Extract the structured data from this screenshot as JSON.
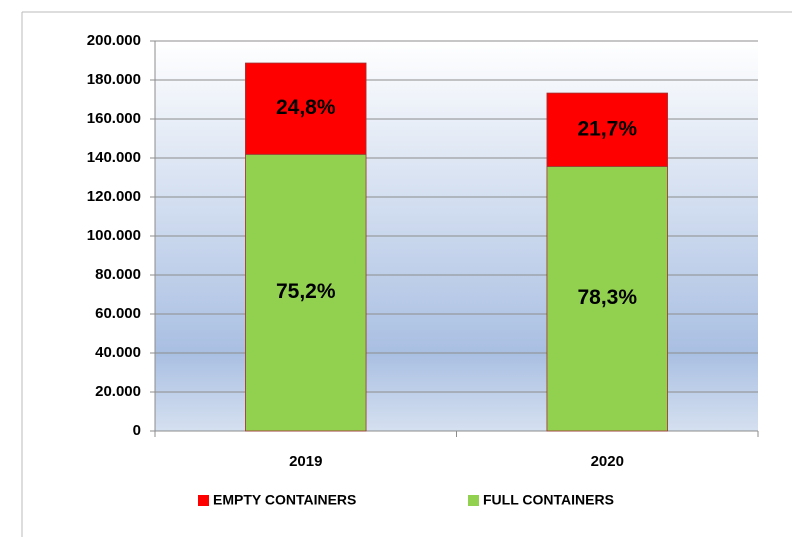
{
  "chart_data": {
    "type": "stacked_bar",
    "categories": [
      "2019",
      "2020"
    ],
    "series": [
      {
        "name": "FULL CONTAINERS",
        "color": "#92d050",
        "values": [
          141900,
          135700
        ],
        "percent_labels": [
          "75,2%",
          "78,3%"
        ]
      },
      {
        "name": "EMPTY CONTAINERS",
        "color": "#ff0000",
        "values": [
          46800,
          37600
        ],
        "percent_labels": [
          "24,8%",
          "21,7%"
        ]
      }
    ],
    "legend_order": [
      1,
      0
    ],
    "ylim": [
      0,
      200000
    ],
    "yticks": [
      0,
      {
        "value": 20000,
        "label": "20.000"
      },
      {
        "value": 40000,
        "label": "40.000"
      },
      {
        "value": 60000,
        "label": "60.000"
      },
      {
        "value": 80000,
        "label": "80.000"
      },
      {
        "value": 100000,
        "label": "100.000"
      },
      {
        "value": 120000,
        "label": "120.000"
      },
      {
        "value": 140000,
        "label": "140.000"
      },
      {
        "value": 160000,
        "label": "160.000"
      },
      {
        "value": 180000,
        "label": "180.000"
      },
      {
        "value": 200000,
        "label": "200.000"
      }
    ],
    "grid": true,
    "legend": "bottom"
  }
}
